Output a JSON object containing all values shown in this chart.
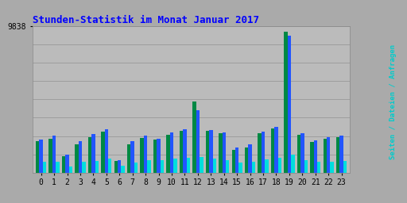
{
  "title": "Stunden-Statistik im Monat Januar 2017",
  "title_color": "#0000FF",
  "background_color": "#AAAAAA",
  "plot_bg_color": "#BBBBBB",
  "ylim_max": 9838,
  "ytick_label": "9838",
  "categories": [
    0,
    1,
    2,
    3,
    4,
    5,
    6,
    7,
    8,
    9,
    10,
    11,
    12,
    13,
    14,
    15,
    16,
    17,
    18,
    19,
    20,
    21,
    22,
    23
  ],
  "seiten": [
    2100,
    2300,
    1100,
    1900,
    2400,
    2750,
    800,
    1900,
    2350,
    2200,
    2550,
    2800,
    4800,
    2800,
    2650,
    1500,
    1700,
    2650,
    2950,
    9500,
    2550,
    2050,
    2300,
    2400
  ],
  "dateien": [
    2200,
    2500,
    1200,
    2100,
    2600,
    2900,
    850,
    2100,
    2500,
    2300,
    2700,
    2900,
    4200,
    2850,
    2700,
    1700,
    1900,
    2750,
    3100,
    9200,
    2650,
    2150,
    2400,
    2500
  ],
  "anfragen": [
    700,
    750,
    400,
    750,
    800,
    950,
    450,
    650,
    850,
    850,
    950,
    1000,
    1050,
    950,
    850,
    650,
    700,
    900,
    1000,
    1200,
    850,
    700,
    750,
    800
  ],
  "color_seiten": "#008844",
  "color_dateien": "#2255FF",
  "color_anfragen": "#00DDDD",
  "bar_width": 0.27,
  "ylabel_text": "Seiten / Dateien / Anfragen",
  "ylabel_color": "#00CCCC",
  "grid_lines": 8
}
